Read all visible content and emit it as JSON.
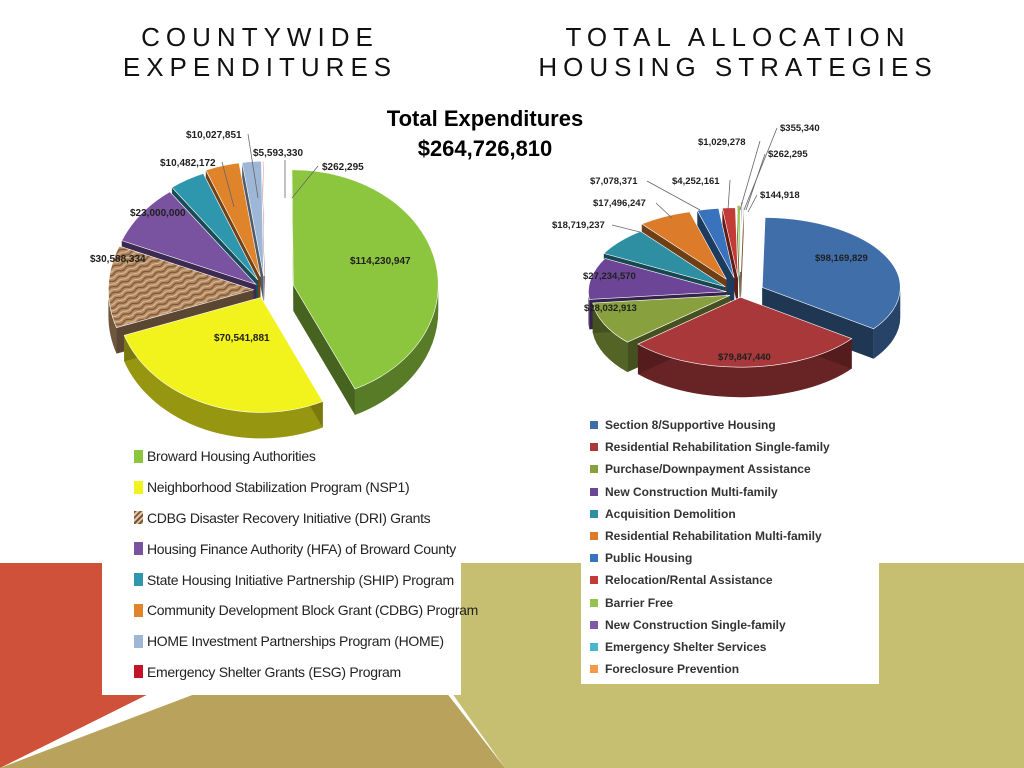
{
  "titles": {
    "left_line1": "COUNTYWIDE",
    "left_line2": "EXPENDITURES",
    "right_line1": "TOTAL ALLOCATION",
    "right_line2": "HOUSING STRATEGIES"
  },
  "total": {
    "label": "Total Expenditures",
    "value": "$264,726,810"
  },
  "colors": {
    "red_accent": "#d0513a",
    "olive_accent": "#c6bf72",
    "tan_accent": "#b8a25c"
  },
  "chart_data": [
    {
      "type": "pie",
      "title": "",
      "legend_position": "bottom",
      "slices": [
        {
          "label": "Broward Housing Authorities",
          "value": 114230947,
          "value_label": "$114,230,947",
          "color": "#8cc63f"
        },
        {
          "label": "Neighborhood Stabilization Program (NSP1)",
          "value": 70541881,
          "value_label": "$70,541,881",
          "color": "#f2f21c"
        },
        {
          "label": "CDBG Disaster Recovery Initiative (DRI) Grants",
          "value": 30588334,
          "value_label": "$30,588,334",
          "color": "#b58b62"
        },
        {
          "label": "Housing Finance Authority (HFA) of Broward County",
          "value": 23000000,
          "value_label": "$23,000,000",
          "color": "#7953a0"
        },
        {
          "label": "State Housing Initiative Partnership (SHIP) Program",
          "value": 10482172,
          "value_label": "$10,482,172",
          "color": "#2f97ad"
        },
        {
          "label": "Community Development Block Grant (CDBG) Program",
          "value": 10027851,
          "value_label": "$10,027,851",
          "color": "#e0842c"
        },
        {
          "label": "HOME Investment Partnerships Program (HOME)",
          "value": 5593330,
          "value_label": "$5,593,330",
          "color": "#9fb7d6"
        },
        {
          "label": "Emergency Shelter Grants (ESG) Program",
          "value": 262295,
          "value_label": "$262,295",
          "color": "#c4122a"
        }
      ]
    },
    {
      "type": "pie",
      "title": "",
      "legend_position": "bottom",
      "slices": [
        {
          "label": "Section 8/Supportive Housing",
          "value": 98169829,
          "value_label": "$98,169,829",
          "color": "#3f6ea8"
        },
        {
          "label": "Residential Rehabilitation Single-family",
          "value": 79847440,
          "value_label": "$79,847,440",
          "color": "#a8383a"
        },
        {
          "label": "Purchase/Downpayment Assistance",
          "value": 28032913,
          "value_label": "$28,032,913",
          "color": "#88a03e"
        },
        {
          "label": "New Construction Multi-family",
          "value": 27234570,
          "value_label": "$27,234,570",
          "color": "#6c4596"
        },
        {
          "label": "Acquisition Demolition",
          "value": 18719237,
          "value_label": "$18,719,237",
          "color": "#2e8fa3"
        },
        {
          "label": "Residential Rehabilitation Multi-family",
          "value": 17496247,
          "value_label": "$17,496,247",
          "color": "#dc7b29"
        },
        {
          "label": "Public Housing",
          "value": 7078371,
          "value_label": "$7,078,371",
          "color": "#3a73bd"
        },
        {
          "label": "Relocation/Rental Assistance",
          "value": 4252161,
          "value_label": "$4,252,161",
          "color": "#c33a36"
        },
        {
          "label": "Barrier Free",
          "value": 1029278,
          "value_label": "$1,029,278",
          "color": "#96c34f"
        },
        {
          "label": "New Construction Single-family",
          "value": 355340,
          "value_label": "$355,340",
          "color": "#7c5aa8"
        },
        {
          "label": "Emergency Shelter Services",
          "value": 262295,
          "value_label": "$262,295",
          "color": "#47b4d0"
        },
        {
          "label": "Foreclosure Prevention",
          "value": 144918,
          "value_label": "$144,918",
          "color": "#f39a4a"
        }
      ]
    }
  ]
}
